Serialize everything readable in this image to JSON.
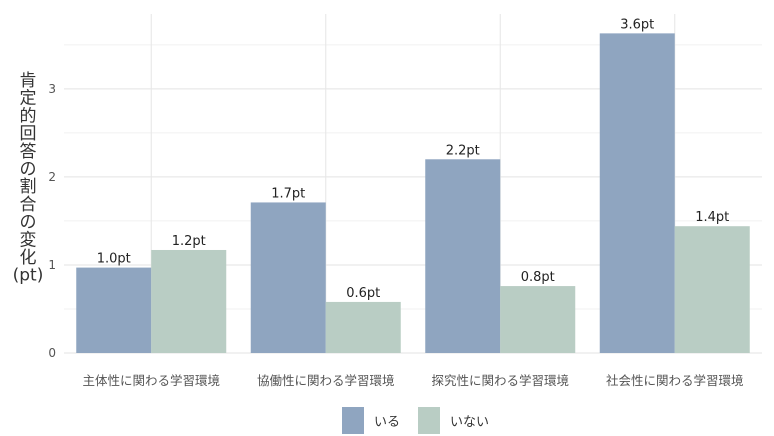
{
  "chart_data": {
    "type": "bar",
    "ylabel": "肯定的回答の割合の変化（pt）",
    "categories": [
      "主体性に関わる学習環境",
      "協働性に関わる学習環境",
      "探究性に関わる学習環境",
      "社会性に関わる学習環境"
    ],
    "series": [
      {
        "name": "いる",
        "values": [
          0.97,
          1.71,
          2.2,
          3.63
        ],
        "labels": [
          "1.0pt",
          "1.7pt",
          "2.2pt",
          "3.6pt"
        ],
        "color": "#8fa5c0"
      },
      {
        "name": "いない",
        "values": [
          1.17,
          0.58,
          0.76,
          1.44
        ],
        "labels": [
          "1.2pt",
          "0.6pt",
          "0.8pt",
          "1.4pt"
        ],
        "color": "#b9cdc4"
      }
    ],
    "yticks": [
      0,
      1,
      2,
      3
    ],
    "ylim": [
      0,
      3.85
    ],
    "grid": true,
    "legend_position": "bottom"
  }
}
